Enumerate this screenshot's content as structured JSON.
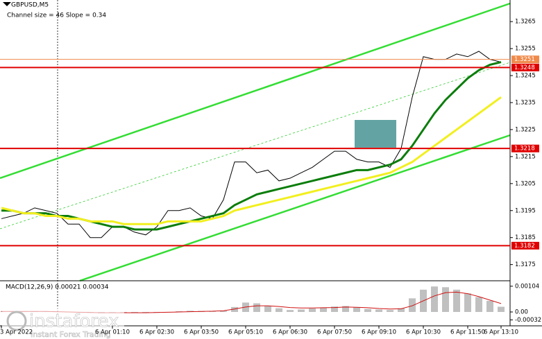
{
  "chart_data": [
    {
      "type": "line",
      "title": "GBPUSD,M5",
      "subtitle": "Channel size = 46 Slope = 0.34",
      "categories": [
        "3 Apr 2022",
        null,
        null,
        null,
        null,
        null,
        null,
        null,
        null,
        null,
        "6 Apr 01:10",
        null,
        null,
        null,
        "6 Apr 02:30",
        null,
        null,
        null,
        "6 Apr 03:50",
        null,
        null,
        null,
        "6 Apr 05:10",
        null,
        null,
        null,
        "6 Apr 06:30",
        null,
        null,
        null,
        "6 Apr 07:50",
        null,
        null,
        null,
        "6 Apr 09:10",
        null,
        null,
        null,
        "6 Apr 10:30",
        null,
        null,
        null,
        "6 Apr 11:50",
        null,
        null,
        "6 Apr 13:10"
      ],
      "series": [
        {
          "color": "#000000",
          "values": [
            1.3192,
            1.3193,
            1.3194,
            1.3196,
            1.3195,
            1.3194,
            1.319,
            1.319,
            1.3185,
            1.3185,
            1.3189,
            1.3189,
            1.3187,
            1.3186,
            1.3189,
            1.3195,
            1.3195,
            1.3196,
            1.3193,
            1.3192,
            1.3199,
            1.3213,
            1.3213,
            1.3209,
            1.321,
            1.3206,
            1.3207,
            1.3209,
            1.3211,
            1.3214,
            1.3217,
            1.3217,
            1.3214,
            1.3213,
            1.3213,
            1.3211,
            1.3218,
            1.3237,
            1.3252,
            1.3251,
            1.3251,
            1.3253,
            1.3252,
            1.3254,
            1.3251,
            1.325
          ]
        },
        {
          "color": "#0b7d0b",
          "values": [
            1.3195,
            1.3195,
            1.3194,
            1.3194,
            1.3194,
            1.3193,
            1.3193,
            1.3192,
            1.3191,
            1.319,
            1.3189,
            1.3189,
            1.3188,
            1.3188,
            1.3188,
            1.3189,
            1.319,
            1.3191,
            1.3192,
            1.3193,
            1.3194,
            1.3197,
            1.3199,
            1.3201,
            1.3202,
            1.3203,
            1.3204,
            1.3205,
            1.3206,
            1.3207,
            1.3208,
            1.3209,
            1.321,
            1.321,
            1.3211,
            1.3212,
            1.3214,
            1.3219,
            1.3225,
            1.3231,
            1.3236,
            1.324,
            1.3244,
            1.3247,
            1.3249,
            1.325
          ]
        },
        {
          "color": "#f2ef1f",
          "values": [
            1.3196,
            1.3195,
            1.3194,
            1.3194,
            1.3193,
            1.3193,
            1.3192,
            1.3192,
            1.3191,
            1.3191,
            1.3191,
            1.319,
            1.319,
            1.319,
            1.319,
            1.3191,
            1.3191,
            1.3191,
            1.3191,
            1.3192,
            1.3193,
            1.3195,
            1.3196,
            1.3197,
            1.3198,
            1.3199,
            1.32,
            1.3201,
            1.3202,
            1.3203,
            1.3204,
            1.3205,
            1.3206,
            1.3207,
            1.3208,
            1.3209,
            1.3211,
            1.3213,
            1.3216,
            1.3219,
            1.3222,
            1.3225,
            1.3228,
            1.3231,
            1.3234,
            1.3237
          ]
        }
      ],
      "ylim": [
        1.3169,
        1.3273
      ],
      "yticks": [
        1.3175,
        1.3185,
        1.3195,
        1.3205,
        1.3215,
        1.3225,
        1.3235,
        1.3245,
        1.3255,
        1.3265
      ],
      "levels": [
        1.3251,
        1.3248,
        1.3218,
        1.3182
      ],
      "level_colors": [
        "#f08a4b",
        "#e00000",
        "#e00000",
        "#e00000"
      ]
    },
    {
      "type": "bar",
      "title": "MACD(12,26,9) 0.00021 0.00034",
      "series": [
        {
          "color": "#c0c0c0",
          "values": [
            2e-05,
            2e-05,
            1e-05,
            3e-05,
            2e-05,
            1e-05,
            -1e-05,
            -2e-05,
            -4e-05,
            -5e-05,
            -4e-05,
            -3e-05,
            -3e-05,
            -4e-05,
            -3e-05,
            -1e-05,
            3e-05,
            5e-05,
            4e-05,
            2e-05,
            4e-05,
            0.0002,
            0.00038,
            0.00035,
            0.00025,
            0.00015,
            8e-05,
            0.0001,
            0.00014,
            0.00018,
            0.00022,
            0.00024,
            0.00018,
            0.00012,
            0.0001,
            8e-05,
            0.00015,
            0.00055,
            0.0009,
            0.00103,
            0.001,
            0.0009,
            0.00075,
            0.0006,
            0.00045,
            0.00021
          ]
        },
        {
          "color": "#d01010",
          "values": [
            2e-05,
            2e-05,
            2e-05,
            2e-05,
            2e-05,
            1e-05,
            0,
            -1e-05,
            -2e-05,
            -3e-05,
            -3e-05,
            -3e-05,
            -3e-05,
            -3e-05,
            -2e-05,
            -1e-05,
            0,
            1e-05,
            2e-05,
            3e-05,
            5e-05,
            0.00012,
            0.0002,
            0.00025,
            0.00025,
            0.00022,
            0.00018,
            0.00016,
            0.00016,
            0.00017,
            0.00018,
            0.0002,
            0.00019,
            0.00017,
            0.00014,
            0.00012,
            0.00013,
            0.00025,
            0.00045,
            0.00065,
            0.00078,
            0.0008,
            0.00074,
            0.00062,
            0.00048,
            0.00034
          ]
        }
      ],
      "ylim": [
        -0.00056,
        0.00126
      ],
      "yticks": [
        -0.00032,
        {
          "value": 0,
          "label": "0.00"
        },
        0.00104
      ]
    }
  ],
  "watermark": {
    "brand": "instaforex",
    "tagline": "Instant Forex Trading"
  }
}
